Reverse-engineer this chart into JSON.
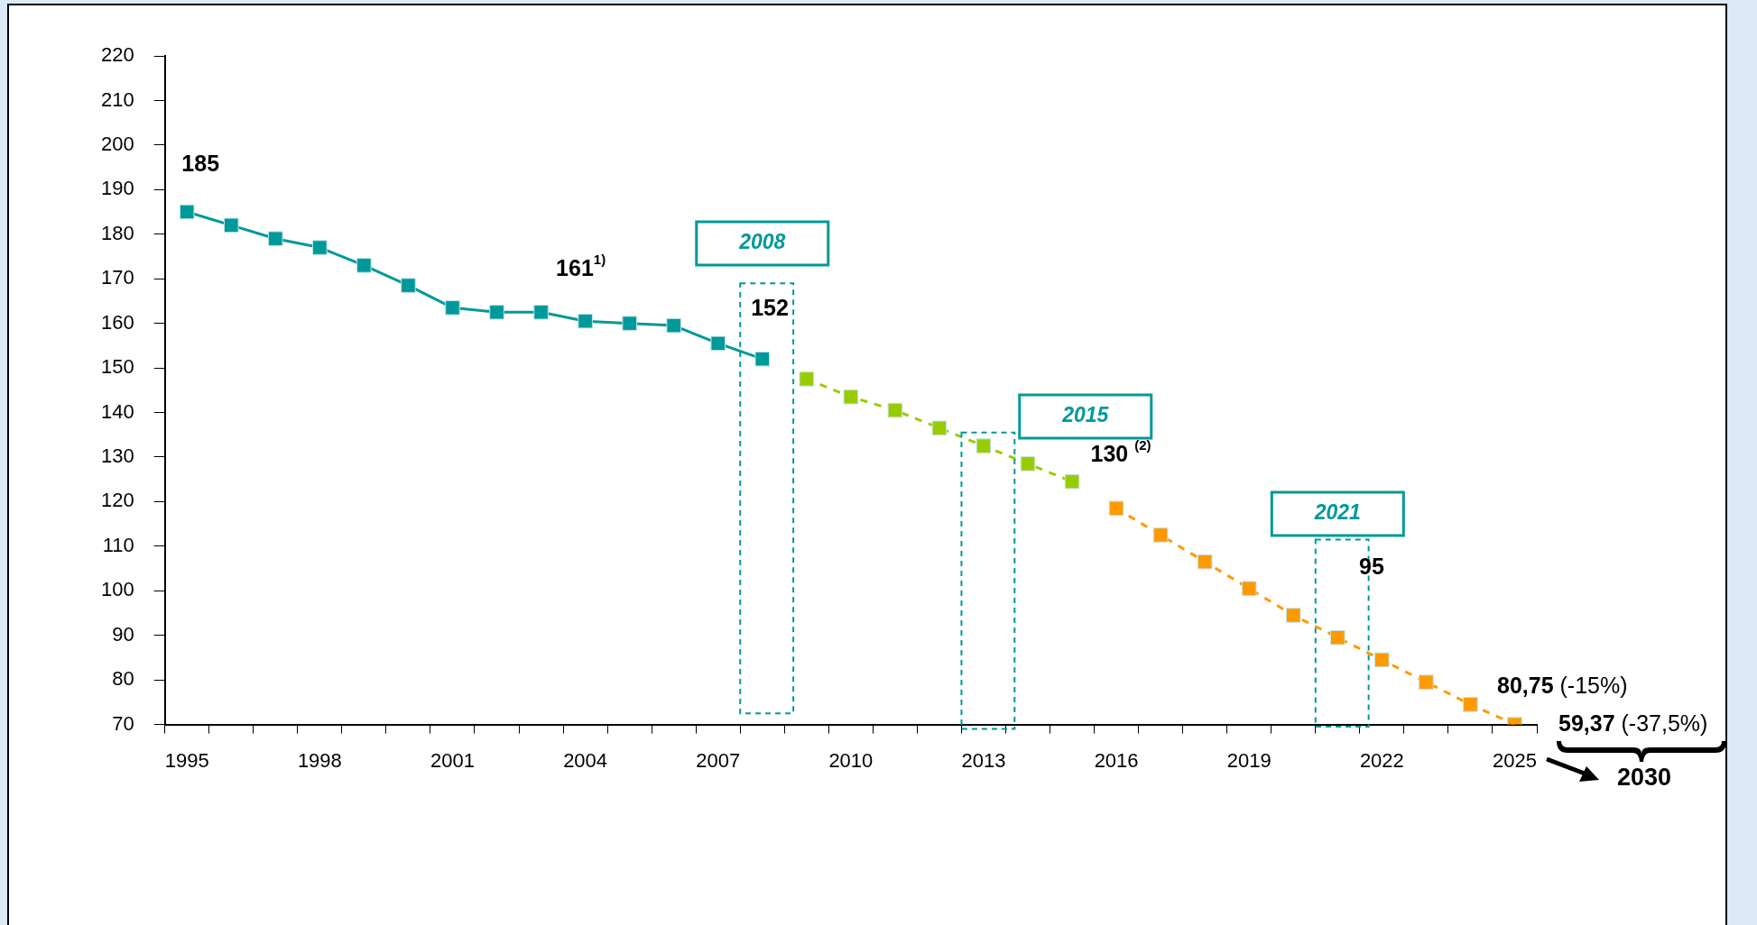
{
  "chart_data": {
    "type": "line",
    "categories": [
      "1995",
      null,
      null,
      "1998",
      null,
      null,
      "2001",
      null,
      null,
      "2004",
      null,
      null,
      "2007",
      null,
      null,
      "2010",
      null,
      null,
      "2013",
      null,
      null,
      "2016",
      null,
      null,
      "2019",
      null,
      null,
      "2022",
      null,
      null,
      "2025"
    ],
    "series": [
      {
        "color": "#009999",
        "line_style": "solid",
        "values": [
          185,
          182,
          179,
          177,
          173,
          168.5,
          163.5,
          162.5,
          162.5,
          160.5,
          160,
          159.5,
          155.5,
          152,
          null,
          null,
          null,
          null,
          null,
          null,
          null,
          null,
          null,
          null,
          null,
          null,
          null,
          null,
          null,
          null,
          null
        ]
      },
      {
        "color": "#99cc00",
        "line_style": "dashed",
        "values": [
          null,
          null,
          null,
          null,
          null,
          null,
          null,
          null,
          null,
          null,
          null,
          null,
          null,
          null,
          147.5,
          143.5,
          140.5,
          136.5,
          132.5,
          128.5,
          124.5,
          null,
          null,
          null,
          null,
          null,
          null,
          null,
          null,
          null,
          null
        ]
      },
      {
        "color": "#ff9900",
        "line_style": "dashed",
        "values": [
          null,
          null,
          null,
          null,
          null,
          null,
          null,
          null,
          null,
          null,
          null,
          null,
          null,
          null,
          null,
          null,
          null,
          null,
          null,
          null,
          null,
          118.5,
          112.5,
          106.5,
          100.5,
          94.5,
          89.5,
          84.5,
          79.5,
          74.5,
          70
        ]
      }
    ],
    "ylim": [
      70,
      220
    ],
    "yticks": [
      70,
      80,
      90,
      100,
      110,
      120,
      130,
      140,
      150,
      160,
      170,
      180,
      190,
      200,
      210,
      220
    ],
    "grid": false,
    "legend": false,
    "marker": "square",
    "annotations": [
      {
        "text": "185",
        "x": "1995",
        "y": 185
      },
      {
        "text": "161$^{1)}$",
        "x": "2004",
        "y": 161
      },
      {
        "text": "152",
        "y": 152
      },
      "130 $^{(2)}$",
      "95",
      "80,75 (-15%)",
      "59,37 (-37,5%)",
      "2030",
      "2008",
      "2015",
      "2021"
    ]
  }
}
